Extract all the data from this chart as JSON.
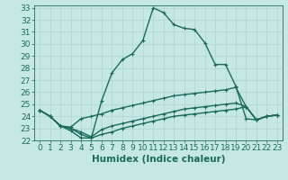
{
  "xlabel": "Humidex (Indice chaleur)",
  "bg_color": "#c5e8e5",
  "line_color": "#1a6b5a",
  "grid_color": "#aed4ce",
  "xlim": [
    -0.5,
    23.5
  ],
  "ylim": [
    22,
    33.2
  ],
  "xticks": [
    0,
    1,
    2,
    3,
    4,
    5,
    6,
    7,
    8,
    9,
    10,
    11,
    12,
    13,
    14,
    15,
    16,
    17,
    18,
    19,
    20,
    21,
    22,
    23
  ],
  "yticks": [
    22,
    23,
    24,
    25,
    26,
    27,
    28,
    29,
    30,
    31,
    32,
    33
  ],
  "lines": [
    {
      "x": [
        0,
        1,
        2,
        3,
        4,
        5,
        6,
        7,
        8,
        9,
        10,
        11,
        12,
        13,
        14,
        15,
        16,
        17,
        18,
        19,
        20,
        21,
        22,
        23
      ],
      "y": [
        24.5,
        24.0,
        23.2,
        22.8,
        22.2,
        22.2,
        25.3,
        27.6,
        28.7,
        29.2,
        30.3,
        33.0,
        32.6,
        31.6,
        31.3,
        31.2,
        30.1,
        28.3,
        28.3,
        26.5,
        23.8,
        23.7,
        24.0,
        24.1
      ]
    },
    {
      "x": [
        0,
        1,
        2,
        3,
        4,
        5,
        6,
        7,
        8,
        9,
        10,
        11,
        12,
        13,
        14,
        15,
        16,
        17,
        18,
        19,
        20,
        21,
        22,
        23
      ],
      "y": [
        24.5,
        24.0,
        23.2,
        23.1,
        23.8,
        24.0,
        24.2,
        24.5,
        24.7,
        24.9,
        25.1,
        25.3,
        25.5,
        25.7,
        25.8,
        25.9,
        26.0,
        26.1,
        26.2,
        26.4,
        24.8,
        23.7,
        24.0,
        24.1
      ]
    },
    {
      "x": [
        0,
        1,
        2,
        3,
        4,
        5,
        6,
        7,
        8,
        9,
        10,
        11,
        12,
        13,
        14,
        15,
        16,
        17,
        18,
        19,
        20,
        21,
        22,
        23
      ],
      "y": [
        24.5,
        24.0,
        23.2,
        23.0,
        22.7,
        22.3,
        22.9,
        23.2,
        23.4,
        23.6,
        23.8,
        24.0,
        24.2,
        24.4,
        24.6,
        24.7,
        24.8,
        24.9,
        25.0,
        25.1,
        24.8,
        23.7,
        24.0,
        24.1
      ]
    },
    {
      "x": [
        0,
        1,
        2,
        3,
        4,
        5,
        6,
        7,
        8,
        9,
        10,
        11,
        12,
        13,
        14,
        15,
        16,
        17,
        18,
        19,
        20,
        21,
        22,
        23
      ],
      "y": [
        24.5,
        24.0,
        23.2,
        23.0,
        22.5,
        22.2,
        22.5,
        22.7,
        23.0,
        23.2,
        23.4,
        23.6,
        23.8,
        24.0,
        24.1,
        24.2,
        24.3,
        24.4,
        24.5,
        24.6,
        24.8,
        23.7,
        24.0,
        24.1
      ]
    }
  ],
  "marker": "+",
  "marker_size": 3.5,
  "line_width": 1.0,
  "font_size": 6.5,
  "xlabel_fontsize": 7.5
}
